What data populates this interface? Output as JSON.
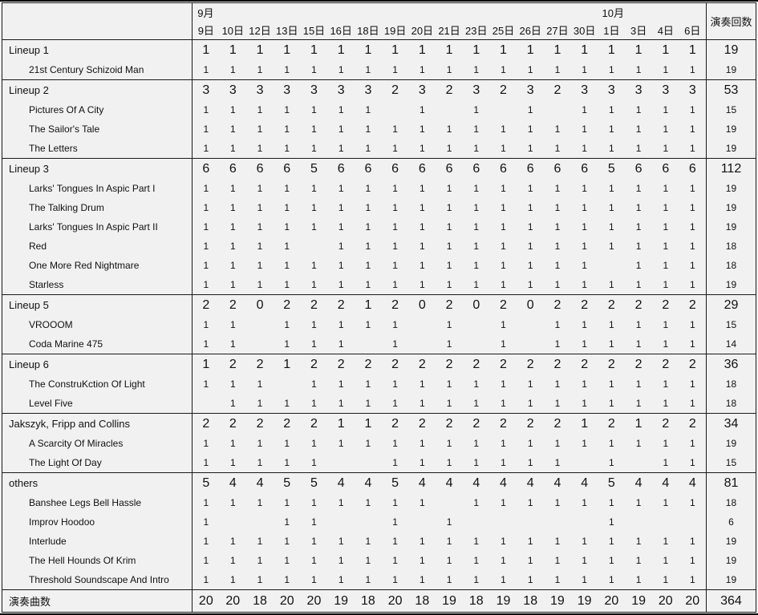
{
  "header": {
    "month_september": "9月",
    "month_october": "10月",
    "september_col_count": 15,
    "october_col_count": 4,
    "total_label": "演奏回数",
    "dates": [
      "9日",
      "10日",
      "12日",
      "13日",
      "15日",
      "16日",
      "18日",
      "19日",
      "20日",
      "21日",
      "23日",
      "25日",
      "26日",
      "27日",
      "30日",
      "1日",
      "3日",
      "4日",
      "6日"
    ]
  },
  "colors": {
    "background": "#f1f1f1",
    "border": "#1a1a1a",
    "text": "#111111"
  },
  "chart_data": {
    "type": "table",
    "title": "",
    "columns": [
      "9日",
      "10日",
      "12日",
      "13日",
      "15日",
      "16日",
      "18日",
      "19日",
      "20日",
      "21日",
      "23日",
      "25日",
      "26日",
      "27日",
      "30日",
      "1日",
      "3日",
      "4日",
      "6日",
      "演奏回数"
    ],
    "column_groups": [
      {
        "label": "9月",
        "span": 15
      },
      {
        "label": "10月",
        "span": 4
      }
    ],
    "rows": [
      {
        "label": "Lineup 1",
        "kind": "lineup",
        "values": [
          1,
          1,
          1,
          1,
          1,
          1,
          1,
          1,
          1,
          1,
          1,
          1,
          1,
          1,
          1,
          1,
          1,
          1,
          1
        ],
        "total": 19
      },
      {
        "label": "21st Century Schizoid Man",
        "kind": "song",
        "values": [
          1,
          1,
          1,
          1,
          1,
          1,
          1,
          1,
          1,
          1,
          1,
          1,
          1,
          1,
          1,
          1,
          1,
          1,
          1
        ],
        "total": 19
      },
      {
        "label": "Lineup 2",
        "kind": "lineup",
        "values": [
          3,
          3,
          3,
          3,
          3,
          3,
          3,
          2,
          3,
          2,
          3,
          2,
          3,
          2,
          3,
          3,
          3,
          3,
          3
        ],
        "total": 53
      },
      {
        "label": "Pictures Of A City",
        "kind": "song",
        "values": [
          1,
          1,
          1,
          1,
          1,
          1,
          1,
          null,
          1,
          null,
          1,
          null,
          1,
          null,
          1,
          1,
          1,
          1,
          1
        ],
        "total": 15
      },
      {
        "label": "The Sailor's Tale",
        "kind": "song",
        "values": [
          1,
          1,
          1,
          1,
          1,
          1,
          1,
          1,
          1,
          1,
          1,
          1,
          1,
          1,
          1,
          1,
          1,
          1,
          1
        ],
        "total": 19
      },
      {
        "label": "The Letters",
        "kind": "song",
        "values": [
          1,
          1,
          1,
          1,
          1,
          1,
          1,
          1,
          1,
          1,
          1,
          1,
          1,
          1,
          1,
          1,
          1,
          1,
          1
        ],
        "total": 19
      },
      {
        "label": "Lineup 3",
        "kind": "lineup",
        "values": [
          6,
          6,
          6,
          6,
          5,
          6,
          6,
          6,
          6,
          6,
          6,
          6,
          6,
          6,
          6,
          5,
          6,
          6,
          6
        ],
        "total": 112
      },
      {
        "label": "Larks' Tongues In Aspic Part I",
        "kind": "song",
        "values": [
          1,
          1,
          1,
          1,
          1,
          1,
          1,
          1,
          1,
          1,
          1,
          1,
          1,
          1,
          1,
          1,
          1,
          1,
          1
        ],
        "total": 19
      },
      {
        "label": "The Talking Drum",
        "kind": "song",
        "values": [
          1,
          1,
          1,
          1,
          1,
          1,
          1,
          1,
          1,
          1,
          1,
          1,
          1,
          1,
          1,
          1,
          1,
          1,
          1
        ],
        "total": 19
      },
      {
        "label": "Larks' Tongues In Aspic Part II",
        "kind": "song",
        "values": [
          1,
          1,
          1,
          1,
          1,
          1,
          1,
          1,
          1,
          1,
          1,
          1,
          1,
          1,
          1,
          1,
          1,
          1,
          1
        ],
        "total": 19
      },
      {
        "label": "Red",
        "kind": "song",
        "values": [
          1,
          1,
          1,
          1,
          null,
          1,
          1,
          1,
          1,
          1,
          1,
          1,
          1,
          1,
          1,
          1,
          1,
          1,
          1
        ],
        "total": 18
      },
      {
        "label": "One More Red Nightmare",
        "kind": "song",
        "values": [
          1,
          1,
          1,
          1,
          1,
          1,
          1,
          1,
          1,
          1,
          1,
          1,
          1,
          1,
          1,
          null,
          1,
          1,
          1
        ],
        "total": 18
      },
      {
        "label": "Starless",
        "kind": "song",
        "values": [
          1,
          1,
          1,
          1,
          1,
          1,
          1,
          1,
          1,
          1,
          1,
          1,
          1,
          1,
          1,
          1,
          1,
          1,
          1
        ],
        "total": 19
      },
      {
        "label": "Lineup 5",
        "kind": "lineup",
        "values": [
          2,
          2,
          0,
          2,
          2,
          2,
          1,
          2,
          0,
          2,
          0,
          2,
          0,
          2,
          2,
          2,
          2,
          2,
          2
        ],
        "total": 29
      },
      {
        "label": "VROOOM",
        "kind": "song",
        "values": [
          1,
          1,
          null,
          1,
          1,
          1,
          1,
          1,
          null,
          1,
          null,
          1,
          null,
          1,
          1,
          1,
          1,
          1,
          1
        ],
        "total": 15
      },
      {
        "label": "Coda Marine 475",
        "kind": "song",
        "values": [
          1,
          1,
          null,
          1,
          1,
          1,
          null,
          1,
          null,
          1,
          null,
          1,
          null,
          1,
          1,
          1,
          1,
          1,
          1
        ],
        "total": 14
      },
      {
        "label": "Lineup 6",
        "kind": "lineup",
        "values": [
          1,
          2,
          2,
          1,
          2,
          2,
          2,
          2,
          2,
          2,
          2,
          2,
          2,
          2,
          2,
          2,
          2,
          2,
          2
        ],
        "total": 36
      },
      {
        "label": "The ConstruKction Of Light",
        "kind": "song",
        "values": [
          1,
          1,
          1,
          null,
          1,
          1,
          1,
          1,
          1,
          1,
          1,
          1,
          1,
          1,
          1,
          1,
          1,
          1,
          1
        ],
        "total": 18
      },
      {
        "label": "Level Five",
        "kind": "song",
        "values": [
          null,
          1,
          1,
          1,
          1,
          1,
          1,
          1,
          1,
          1,
          1,
          1,
          1,
          1,
          1,
          1,
          1,
          1,
          1
        ],
        "total": 18
      },
      {
        "label": "Jakszyk, Fripp and Collins",
        "kind": "lineup",
        "values": [
          2,
          2,
          2,
          2,
          2,
          1,
          1,
          2,
          2,
          2,
          2,
          2,
          2,
          2,
          1,
          2,
          1,
          2,
          2
        ],
        "total": 34
      },
      {
        "label": "A Scarcity Of Miracles",
        "kind": "song",
        "values": [
          1,
          1,
          1,
          1,
          1,
          1,
          1,
          1,
          1,
          1,
          1,
          1,
          1,
          1,
          1,
          1,
          1,
          1,
          1
        ],
        "total": 19
      },
      {
        "label": "The Light Of Day",
        "kind": "song",
        "values": [
          1,
          1,
          1,
          1,
          1,
          null,
          null,
          1,
          1,
          1,
          1,
          1,
          1,
          1,
          null,
          1,
          null,
          1,
          1
        ],
        "total": 15
      },
      {
        "label": "others",
        "kind": "lineup",
        "values": [
          5,
          4,
          4,
          5,
          5,
          4,
          4,
          5,
          4,
          4,
          4,
          4,
          4,
          4,
          4,
          5,
          4,
          4,
          4
        ],
        "total": 81
      },
      {
        "label": "Banshee Legs Bell Hassle",
        "kind": "song",
        "values": [
          1,
          1,
          1,
          1,
          1,
          1,
          1,
          1,
          1,
          null,
          1,
          1,
          1,
          1,
          1,
          1,
          1,
          1,
          1
        ],
        "total": 18
      },
      {
        "label": "Improv Hoodoo",
        "kind": "song",
        "values": [
          1,
          null,
          null,
          1,
          1,
          null,
          null,
          1,
          null,
          1,
          null,
          null,
          null,
          null,
          null,
          1,
          null,
          null,
          null
        ],
        "total": 6
      },
      {
        "label": "Interlude",
        "kind": "song",
        "values": [
          1,
          1,
          1,
          1,
          1,
          1,
          1,
          1,
          1,
          1,
          1,
          1,
          1,
          1,
          1,
          1,
          1,
          1,
          1
        ],
        "total": 19
      },
      {
        "label": "The Hell Hounds Of Krim",
        "kind": "song",
        "values": [
          1,
          1,
          1,
          1,
          1,
          1,
          1,
          1,
          1,
          1,
          1,
          1,
          1,
          1,
          1,
          1,
          1,
          1,
          1
        ],
        "total": 19
      },
      {
        "label": "Threshold Soundscape And Intro",
        "kind": "song",
        "values": [
          1,
          1,
          1,
          1,
          1,
          1,
          1,
          1,
          1,
          1,
          1,
          1,
          1,
          1,
          1,
          1,
          1,
          1,
          1
        ],
        "total": 19
      },
      {
        "label": "演奏曲数",
        "kind": "footer",
        "values": [
          20,
          20,
          18,
          20,
          20,
          19,
          18,
          20,
          18,
          19,
          18,
          19,
          18,
          19,
          19,
          20,
          19,
          20,
          20
        ],
        "total": 364
      }
    ]
  }
}
